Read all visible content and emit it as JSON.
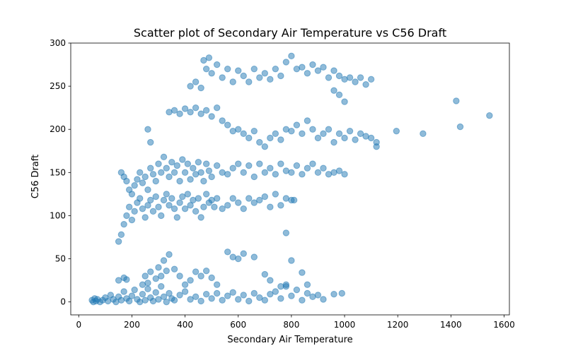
{
  "chart_data": {
    "type": "scatter",
    "title": "Scatter plot of Secondary Air Temperature vs C56 Draft",
    "xlabel": "Secondary Air Temperature",
    "ylabel": "C56 Draft",
    "xlim": [
      -30,
      1620
    ],
    "ylim": [
      -15,
      300
    ],
    "xticks": [
      0,
      200,
      400,
      600,
      800,
      1000,
      1200,
      1400,
      1600
    ],
    "yticks": [
      0,
      50,
      100,
      150,
      200,
      250,
      300
    ],
    "grid": false,
    "point_color": "#1f77b4",
    "point_alpha": 0.5,
    "points": [
      [
        50,
        2
      ],
      [
        55,
        0
      ],
      [
        60,
        4
      ],
      [
        65,
        1
      ],
      [
        70,
        3
      ],
      [
        80,
        0
      ],
      [
        90,
        2
      ],
      [
        100,
        5
      ],
      [
        110,
        1
      ],
      [
        120,
        8
      ],
      [
        130,
        3
      ],
      [
        140,
        0
      ],
      [
        150,
        6
      ],
      [
        160,
        2
      ],
      [
        170,
        12
      ],
      [
        180,
        4
      ],
      [
        190,
        1
      ],
      [
        200,
        7
      ],
      [
        210,
        14
      ],
      [
        220,
        3
      ],
      [
        230,
        0
      ],
      [
        240,
        9
      ],
      [
        250,
        2
      ],
      [
        260,
        15
      ],
      [
        270,
        5
      ],
      [
        280,
        1
      ],
      [
        290,
        11
      ],
      [
        300,
        3
      ],
      [
        310,
        18
      ],
      [
        320,
        6
      ],
      [
        330,
        0
      ],
      [
        340,
        10
      ],
      [
        350,
        4
      ],
      [
        360,
        2
      ],
      [
        380,
        8
      ],
      [
        400,
        12
      ],
      [
        420,
        3
      ],
      [
        440,
        6
      ],
      [
        460,
        1
      ],
      [
        480,
        9
      ],
      [
        500,
        4
      ],
      [
        520,
        10
      ],
      [
        540,
        2
      ],
      [
        560,
        7
      ],
      [
        580,
        11
      ],
      [
        600,
        3
      ],
      [
        620,
        8
      ],
      [
        640,
        1
      ],
      [
        660,
        10
      ],
      [
        680,
        5
      ],
      [
        700,
        2
      ],
      [
        720,
        9
      ],
      [
        740,
        12
      ],
      [
        760,
        4
      ],
      [
        780,
        18
      ],
      [
        800,
        7
      ],
      [
        820,
        14
      ],
      [
        840,
        2
      ],
      [
        860,
        10
      ],
      [
        880,
        6
      ],
      [
        900,
        8
      ],
      [
        920,
        3
      ],
      [
        960,
        9
      ],
      [
        990,
        10
      ],
      [
        150,
        25
      ],
      [
        170,
        28
      ],
      [
        180,
        26
      ],
      [
        240,
        20
      ],
      [
        250,
        30
      ],
      [
        260,
        22
      ],
      [
        270,
        35
      ],
      [
        290,
        27
      ],
      [
        300,
        40
      ],
      [
        310,
        30
      ],
      [
        320,
        48
      ],
      [
        330,
        36
      ],
      [
        340,
        55
      ],
      [
        360,
        38
      ],
      [
        380,
        30
      ],
      [
        400,
        20
      ],
      [
        420,
        25
      ],
      [
        440,
        35
      ],
      [
        460,
        30
      ],
      [
        480,
        36
      ],
      [
        500,
        28
      ],
      [
        520,
        20
      ],
      [
        560,
        58
      ],
      [
        580,
        52
      ],
      [
        600,
        50
      ],
      [
        620,
        56
      ],
      [
        660,
        52
      ],
      [
        700,
        32
      ],
      [
        720,
        25
      ],
      [
        760,
        18
      ],
      [
        780,
        20
      ],
      [
        800,
        48
      ],
      [
        840,
        34
      ],
      [
        860,
        20
      ],
      [
        150,
        70
      ],
      [
        160,
        78
      ],
      [
        170,
        90
      ],
      [
        180,
        100
      ],
      [
        190,
        110
      ],
      [
        200,
        95
      ],
      [
        210,
        105
      ],
      [
        220,
        115
      ],
      [
        230,
        120
      ],
      [
        240,
        108
      ],
      [
        250,
        98
      ],
      [
        260,
        112
      ],
      [
        270,
        118
      ],
      [
        280,
        105
      ],
      [
        290,
        122
      ],
      [
        300,
        110
      ],
      [
        310,
        100
      ],
      [
        320,
        118
      ],
      [
        330,
        125
      ],
      [
        340,
        112
      ],
      [
        350,
        120
      ],
      [
        360,
        108
      ],
      [
        370,
        98
      ],
      [
        380,
        115
      ],
      [
        390,
        122
      ],
      [
        400,
        108
      ],
      [
        410,
        125
      ],
      [
        420,
        112
      ],
      [
        430,
        118
      ],
      [
        440,
        105
      ],
      [
        450,
        120
      ],
      [
        460,
        98
      ],
      [
        470,
        110
      ],
      [
        480,
        125
      ],
      [
        490,
        115
      ],
      [
        500,
        118
      ],
      [
        510,
        110
      ],
      [
        520,
        120
      ],
      [
        540,
        108
      ],
      [
        560,
        112
      ],
      [
        580,
        120
      ],
      [
        600,
        115
      ],
      [
        620,
        108
      ],
      [
        640,
        120
      ],
      [
        660,
        115
      ],
      [
        680,
        118
      ],
      [
        700,
        122
      ],
      [
        720,
        110
      ],
      [
        740,
        125
      ],
      [
        760,
        112
      ],
      [
        780,
        120
      ],
      [
        800,
        118
      ],
      [
        780,
        80
      ],
      [
        810,
        118
      ],
      [
        160,
        150
      ],
      [
        170,
        145
      ],
      [
        180,
        140
      ],
      [
        190,
        130
      ],
      [
        200,
        125
      ],
      [
        210,
        135
      ],
      [
        220,
        142
      ],
      [
        230,
        150
      ],
      [
        240,
        138
      ],
      [
        250,
        145
      ],
      [
        260,
        130
      ],
      [
        270,
        155
      ],
      [
        280,
        148
      ],
      [
        290,
        140
      ],
      [
        300,
        160
      ],
      [
        310,
        150
      ],
      [
        320,
        168
      ],
      [
        330,
        155
      ],
      [
        340,
        145
      ],
      [
        350,
        162
      ],
      [
        360,
        150
      ],
      [
        370,
        158
      ],
      [
        380,
        140
      ],
      [
        390,
        165
      ],
      [
        400,
        150
      ],
      [
        410,
        160
      ],
      [
        420,
        142
      ],
      [
        430,
        155
      ],
      [
        440,
        148
      ],
      [
        450,
        162
      ],
      [
        460,
        150
      ],
      [
        470,
        140
      ],
      [
        480,
        160
      ],
      [
        490,
        152
      ],
      [
        500,
        145
      ],
      [
        520,
        158
      ],
      [
        540,
        150
      ],
      [
        560,
        148
      ],
      [
        580,
        155
      ],
      [
        600,
        160
      ],
      [
        620,
        150
      ],
      [
        640,
        158
      ],
      [
        660,
        145
      ],
      [
        680,
        160
      ],
      [
        700,
        150
      ],
      [
        720,
        155
      ],
      [
        740,
        148
      ],
      [
        760,
        160
      ],
      [
        780,
        152
      ],
      [
        800,
        150
      ],
      [
        820,
        158
      ],
      [
        840,
        148
      ],
      [
        860,
        155
      ],
      [
        880,
        160
      ],
      [
        900,
        150
      ],
      [
        920,
        155
      ],
      [
        940,
        148
      ],
      [
        960,
        150
      ],
      [
        980,
        152
      ],
      [
        1000,
        148
      ],
      [
        260,
        200
      ],
      [
        270,
        185
      ],
      [
        340,
        220
      ],
      [
        360,
        222
      ],
      [
        380,
        218
      ],
      [
        400,
        224
      ],
      [
        420,
        220
      ],
      [
        440,
        225
      ],
      [
        460,
        218
      ],
      [
        480,
        222
      ],
      [
        500,
        215
      ],
      [
        520,
        225
      ],
      [
        540,
        210
      ],
      [
        560,
        205
      ],
      [
        580,
        198
      ],
      [
        600,
        200
      ],
      [
        620,
        195
      ],
      [
        640,
        190
      ],
      [
        660,
        198
      ],
      [
        680,
        185
      ],
      [
        700,
        180
      ],
      [
        720,
        190
      ],
      [
        740,
        195
      ],
      [
        760,
        188
      ],
      [
        780,
        200
      ],
      [
        800,
        198
      ],
      [
        820,
        205
      ],
      [
        840,
        195
      ],
      [
        860,
        210
      ],
      [
        880,
        200
      ],
      [
        900,
        190
      ],
      [
        920,
        195
      ],
      [
        940,
        200
      ],
      [
        960,
        185
      ],
      [
        980,
        195
      ],
      [
        1000,
        190
      ],
      [
        1020,
        198
      ],
      [
        1040,
        188
      ],
      [
        1060,
        195
      ],
      [
        1080,
        192
      ],
      [
        1100,
        190
      ],
      [
        1120,
        180
      ],
      [
        1120,
        185
      ],
      [
        420,
        250
      ],
      [
        440,
        255
      ],
      [
        460,
        248
      ],
      [
        470,
        280
      ],
      [
        480,
        270
      ],
      [
        490,
        283
      ],
      [
        500,
        265
      ],
      [
        520,
        275
      ],
      [
        540,
        260
      ],
      [
        560,
        270
      ],
      [
        580,
        255
      ],
      [
        600,
        268
      ],
      [
        620,
        262
      ],
      [
        640,
        255
      ],
      [
        660,
        270
      ],
      [
        680,
        260
      ],
      [
        700,
        265
      ],
      [
        720,
        258
      ],
      [
        740,
        270
      ],
      [
        760,
        262
      ],
      [
        780,
        278
      ],
      [
        800,
        285
      ],
      [
        820,
        270
      ],
      [
        840,
        272
      ],
      [
        860,
        265
      ],
      [
        880,
        275
      ],
      [
        900,
        268
      ],
      [
        920,
        272
      ],
      [
        940,
        260
      ],
      [
        960,
        268
      ],
      [
        980,
        262
      ],
      [
        1000,
        258
      ],
      [
        1020,
        260
      ],
      [
        1040,
        255
      ],
      [
        1060,
        260
      ],
      [
        1080,
        252
      ],
      [
        1100,
        258
      ],
      [
        1000,
        232
      ],
      [
        980,
        240
      ],
      [
        960,
        245
      ],
      [
        1195,
        198
      ],
      [
        1295,
        195
      ],
      [
        1420,
        233
      ],
      [
        1435,
        203
      ],
      [
        1545,
        216
      ]
    ]
  }
}
